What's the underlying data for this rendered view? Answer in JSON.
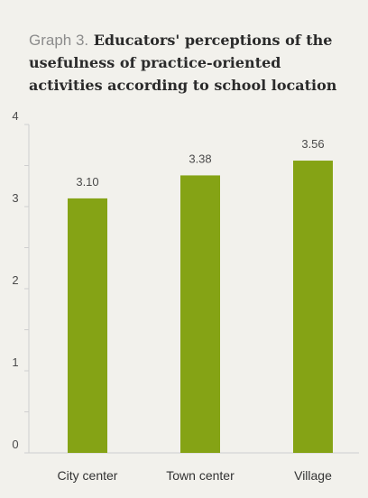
{
  "chart_data": {
    "type": "bar",
    "title_prefix": "Graph 3.",
    "title": "Educators' perceptions of the usefulness of practice-oriented activities according to school location",
    "categories": [
      "City center",
      "Town center",
      "Village"
    ],
    "values": [
      3.1,
      3.38,
      3.56
    ],
    "value_labels": [
      "3.10",
      "3.38",
      "3.56"
    ],
    "ylim": [
      0,
      4
    ],
    "yticks": [
      "0",
      "1",
      "2",
      "3",
      "4"
    ],
    "grid": false,
    "bar_color": "#85a315",
    "axis_color": "#cfcfcf"
  }
}
